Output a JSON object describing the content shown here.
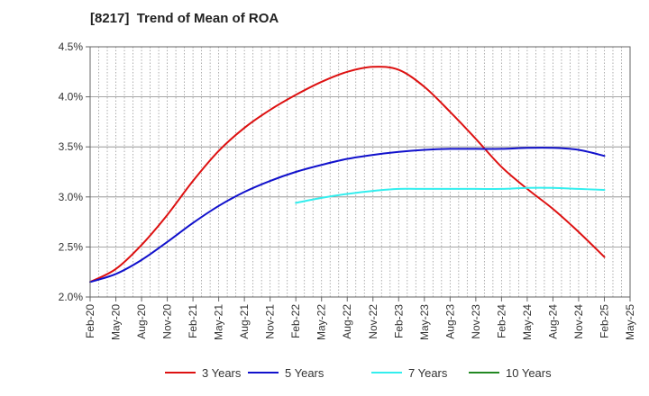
{
  "chart_data": {
    "type": "line",
    "title": "[8217]  Trend of Mean of ROA",
    "xlabel": "",
    "ylabel": "",
    "ylim": [
      2.0,
      4.5
    ],
    "y_ticks": [
      "2.0%",
      "2.5%",
      "3.0%",
      "3.5%",
      "4.0%",
      "4.5%"
    ],
    "y_tick_values": [
      2.0,
      2.5,
      3.0,
      3.5,
      4.0,
      4.5
    ],
    "x_ticks": [
      "Feb-20",
      "May-20",
      "Aug-20",
      "Nov-20",
      "Feb-21",
      "May-21",
      "Aug-21",
      "Nov-21",
      "Feb-22",
      "May-22",
      "Aug-22",
      "Nov-22",
      "Feb-23",
      "May-23",
      "Aug-23",
      "Nov-23",
      "Feb-24",
      "May-24",
      "Aug-24",
      "Nov-24",
      "Feb-25",
      "May-25"
    ],
    "grid": "vertical dotted",
    "legend_position": "bottom",
    "series": [
      {
        "name": "3 Years",
        "color": "#dd1111",
        "x": [
          0,
          1,
          2,
          3,
          4,
          5,
          6,
          7,
          8,
          9,
          10,
          11,
          12,
          13,
          14,
          15,
          16,
          17,
          18,
          19,
          20
        ],
        "values": [
          2.15,
          2.28,
          2.52,
          2.82,
          3.16,
          3.46,
          3.69,
          3.87,
          4.02,
          4.15,
          4.25,
          4.3,
          4.27,
          4.1,
          3.85,
          3.58,
          3.3,
          3.08,
          2.88,
          2.65,
          2.4
        ]
      },
      {
        "name": "5 Years",
        "color": "#1111cc",
        "x": [
          0,
          1,
          2,
          3,
          4,
          5,
          6,
          7,
          8,
          9,
          10,
          11,
          12,
          13,
          14,
          15,
          16,
          17,
          18,
          19,
          20
        ],
        "values": [
          2.15,
          2.23,
          2.37,
          2.55,
          2.74,
          2.91,
          3.05,
          3.16,
          3.25,
          3.32,
          3.38,
          3.42,
          3.45,
          3.47,
          3.48,
          3.48,
          3.48,
          3.49,
          3.49,
          3.47,
          3.41
        ]
      },
      {
        "name": "7 Years",
        "color": "#33eeee",
        "x": [
          8,
          9,
          10,
          11,
          12,
          13,
          14,
          15,
          16,
          17,
          18,
          19,
          20
        ],
        "values": [
          2.94,
          2.99,
          3.03,
          3.06,
          3.08,
          3.08,
          3.08,
          3.08,
          3.08,
          3.09,
          3.09,
          3.08,
          3.07
        ]
      },
      {
        "name": "10 Years",
        "color": "#228822",
        "x": [],
        "values": []
      }
    ]
  }
}
